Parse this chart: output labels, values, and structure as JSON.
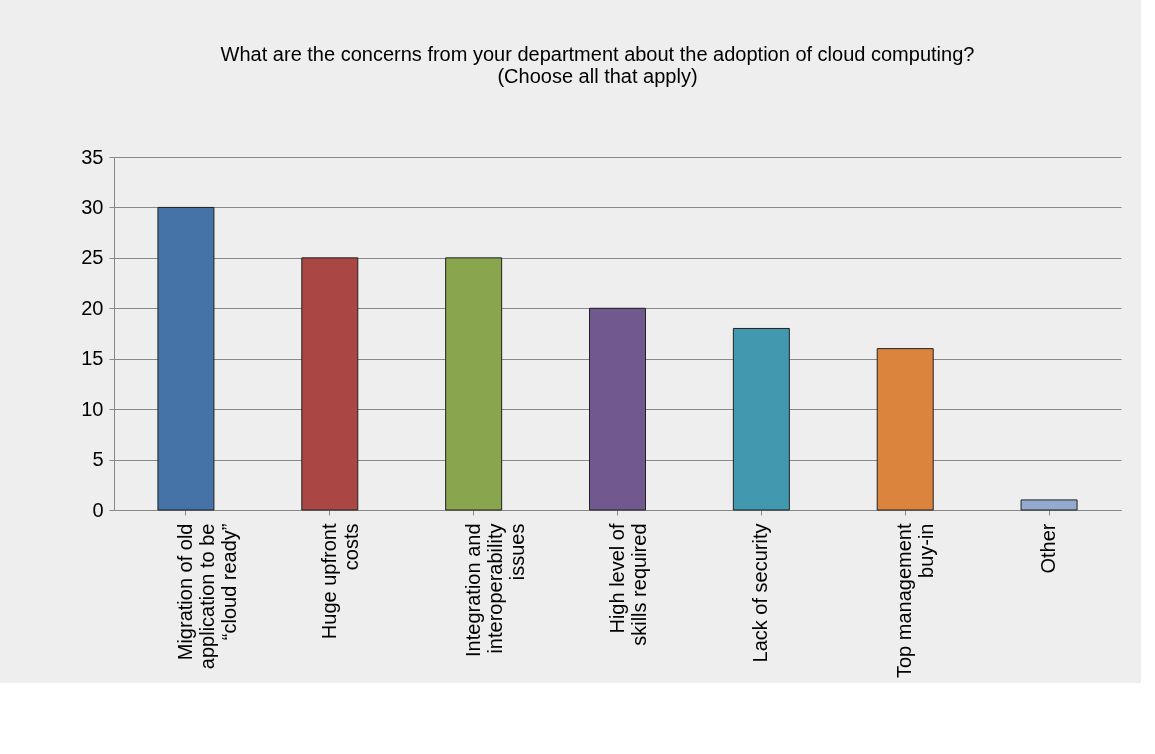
{
  "chart_data": {
    "type": "bar",
    "title": "What are the concerns from your department about the adoption of cloud computing? (Choose all that apply)",
    "categories": [
      "Migration of old application to be “cloud ready”",
      "Huge upfront costs",
      "Integration and interoperability issues",
      "High level of skills required",
      "Lack of security",
      "Top management buy-in",
      "Other"
    ],
    "values": [
      30,
      25,
      25,
      20,
      18,
      16,
      1
    ],
    "colors": [
      "#4572a7",
      "#aa4643",
      "#89a54e",
      "#71588f",
      "#4198af",
      "#db843d",
      "#93a9cf"
    ],
    "ylim": [
      0,
      35
    ],
    "yticks": [
      0,
      5,
      10,
      15,
      20,
      25,
      30,
      35
    ],
    "grid": "y"
  }
}
